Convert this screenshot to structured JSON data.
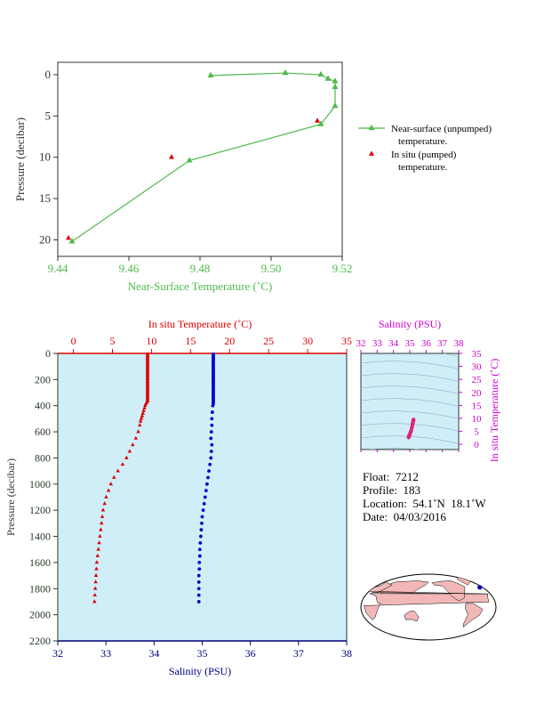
{
  "colors": {
    "green": "#4cbb4c",
    "red": "#dd0000",
    "blue": "#0000cc",
    "magenta": "#cc00cc",
    "navy": "#000080",
    "axis_dark": "#2a3a2a",
    "plot_bg": "#cfeef8",
    "land": "#f2b8b8",
    "ocean": "#ffffff"
  },
  "chart_data": [
    {
      "id": "near-surface",
      "type": "scatter",
      "xlabel": "Near-Surface Temperature (˚C)",
      "ylabel": "Pressure (decibar)",
      "xlim": [
        9.44,
        9.52
      ],
      "ylim": [
        22,
        -1.5
      ],
      "xticks": [
        "9.44",
        "9.46",
        "9.48",
        "9.50",
        "9.52"
      ],
      "yticks": [
        "0",
        "5",
        "10",
        "15",
        "20"
      ],
      "series": [
        {
          "name": "Near-surface (unpumped) temperature.",
          "marker": "triangle",
          "line": true,
          "points": [
            [
              9.483,
              0.1
            ],
            [
              9.504,
              -0.2
            ],
            [
              9.514,
              0.0
            ],
            [
              9.516,
              0.5
            ],
            [
              9.518,
              0.8
            ],
            [
              9.518,
              1.5
            ],
            [
              9.518,
              3.8
            ],
            [
              9.514,
              6.0
            ],
            [
              9.477,
              10.4
            ],
            [
              9.444,
              20.2
            ]
          ]
        },
        {
          "name": "In situ (pumped) temperature.",
          "marker": "triangle",
          "line": false,
          "points": [
            [
              9.472,
              10.0
            ],
            [
              9.513,
              5.6
            ],
            [
              9.443,
              19.8
            ]
          ]
        }
      ],
      "legend": [
        {
          "line1": "Near-surface (unpumped)",
          "line2": "temperature."
        },
        {
          "line1": "In situ (pumped)",
          "line2": "temperature."
        }
      ]
    },
    {
      "id": "profile",
      "type": "scatter",
      "ylabel": "Pressure (decibar)",
      "ylim": [
        0,
        2200
      ],
      "yticks": [
        "0",
        "200",
        "400",
        "600",
        "800",
        "1000",
        "1200",
        "1400",
        "1600",
        "1800",
        "2000",
        "2200"
      ],
      "top_axis": {
        "label": "In situ Temperature (˚C)",
        "lim": [
          -2,
          35
        ],
        "ticks": [
          "0",
          "5",
          "10",
          "15",
          "20",
          "25",
          "30",
          "35"
        ]
      },
      "bottom_axis": {
        "label": "Salinity (PSU)",
        "lim": [
          32,
          38
        ],
        "ticks": [
          "32",
          "33",
          "34",
          "35",
          "36",
          "37",
          "38"
        ]
      },
      "temperature": {
        "pressure": [
          5,
          15,
          25,
          35,
          45,
          55,
          65,
          75,
          85,
          95,
          105,
          115,
          125,
          135,
          145,
          155,
          165,
          175,
          185,
          195,
          205,
          215,
          225,
          235,
          245,
          255,
          265,
          275,
          285,
          295,
          305,
          315,
          325,
          335,
          345,
          355,
          365,
          375,
          385,
          400,
          420,
          440,
          460,
          480,
          500,
          520,
          550,
          600,
          650,
          700,
          750,
          800,
          850,
          900,
          950,
          1000,
          1050,
          1100,
          1150,
          1200,
          1250,
          1300,
          1350,
          1400,
          1450,
          1500,
          1550,
          1600,
          1650,
          1700,
          1750,
          1800,
          1850,
          1900
        ],
        "values": [
          9.5,
          9.5,
          9.5,
          9.5,
          9.5,
          9.5,
          9.5,
          9.5,
          9.5,
          9.5,
          9.5,
          9.5,
          9.5,
          9.5,
          9.5,
          9.5,
          9.5,
          9.5,
          9.5,
          9.5,
          9.5,
          9.5,
          9.5,
          9.5,
          9.5,
          9.5,
          9.5,
          9.5,
          9.5,
          9.5,
          9.5,
          9.5,
          9.5,
          9.5,
          9.5,
          9.5,
          9.5,
          9.4,
          9.3,
          9.2,
          9.1,
          9.0,
          8.9,
          8.8,
          8.7,
          8.6,
          8.5,
          8.3,
          8.0,
          7.6,
          7.2,
          6.8,
          6.3,
          5.7,
          5.2,
          4.8,
          4.5,
          4.2,
          4.0,
          3.8,
          3.7,
          3.6,
          3.5,
          3.4,
          3.3,
          3.2,
          3.1,
          3.0,
          2.95,
          2.9,
          2.85,
          2.8,
          2.75,
          2.7
        ]
      },
      "salinity": {
        "pressure": [
          5,
          15,
          25,
          35,
          45,
          55,
          65,
          75,
          85,
          95,
          105,
          115,
          125,
          135,
          145,
          155,
          165,
          175,
          185,
          195,
          205,
          215,
          225,
          235,
          245,
          255,
          265,
          275,
          285,
          295,
          305,
          315,
          325,
          335,
          345,
          355,
          365,
          375,
          385,
          400,
          450,
          500,
          550,
          600,
          650,
          700,
          750,
          800,
          850,
          900,
          950,
          1000,
          1050,
          1100,
          1150,
          1200,
          1250,
          1300,
          1350,
          1400,
          1450,
          1500,
          1550,
          1600,
          1650,
          1700,
          1750,
          1800,
          1850,
          1900
        ],
        "values": [
          35.23,
          35.23,
          35.23,
          35.23,
          35.23,
          35.23,
          35.23,
          35.23,
          35.23,
          35.23,
          35.23,
          35.23,
          35.23,
          35.23,
          35.23,
          35.23,
          35.23,
          35.23,
          35.23,
          35.23,
          35.23,
          35.23,
          35.23,
          35.23,
          35.23,
          35.23,
          35.23,
          35.23,
          35.23,
          35.23,
          35.23,
          35.23,
          35.23,
          35.23,
          35.23,
          35.23,
          35.23,
          35.23,
          35.23,
          35.22,
          35.21,
          35.2,
          35.2,
          35.19,
          35.18,
          35.2,
          35.19,
          35.18,
          35.16,
          35.14,
          35.12,
          35.1,
          35.08,
          35.06,
          35.04,
          35.02,
          35.0,
          34.99,
          34.98,
          34.97,
          34.96,
          34.95,
          34.95,
          34.94,
          34.94,
          34.93,
          34.93,
          34.93,
          34.93,
          34.93
        ]
      }
    },
    {
      "id": "ts-diagram",
      "type": "scatter",
      "xlabel": "Salinity (PSU)",
      "ylabel": "In situ Temperature (˚C)",
      "xlim": [
        32,
        38
      ],
      "ylim": [
        -2,
        35
      ],
      "xticks": [
        "32",
        "33",
        "34",
        "35",
        "36",
        "37",
        "38"
      ],
      "yticks": [
        "0",
        "5",
        "10",
        "15",
        "20",
        "25",
        "30",
        "35"
      ],
      "points_salinity": [
        35.23,
        35.22,
        35.2,
        35.18,
        35.16,
        35.12,
        35.08,
        35.04,
        35.0,
        34.97,
        34.95,
        34.93
      ],
      "points_temperature": [
        9.5,
        9.2,
        8.6,
        8.0,
        7.2,
        6.3,
        5.2,
        4.5,
        3.8,
        3.4,
        3.1,
        2.7
      ]
    }
  ],
  "info": {
    "float": "Float:  7212",
    "profile": "Profile:  183",
    "location": "Location:  54.1˚N  18.1˚W",
    "date": "Date:  04/03/2016"
  },
  "map": {
    "marker_lat": 54.1,
    "marker_lon": -18.1
  }
}
